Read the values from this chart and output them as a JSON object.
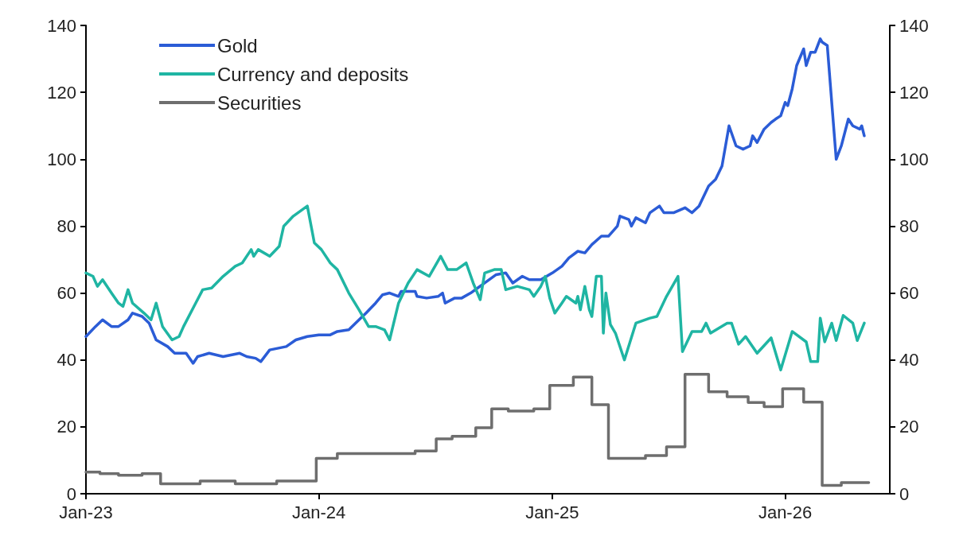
{
  "chart_data": {
    "type": "line",
    "xlim": [
      "2023-01-01",
      "2026-06-14"
    ],
    "xticks": [
      {
        "value": "2023-01-01",
        "label": "Jan-23"
      },
      {
        "value": "2024-01-01",
        "label": "Jan-24"
      },
      {
        "value": "2025-01-01",
        "label": "Jan-25"
      },
      {
        "value": "2026-01-01",
        "label": "Jan-26"
      }
    ],
    "ylim": [
      0,
      140
    ],
    "yticks": [
      0,
      20,
      40,
      60,
      80,
      100,
      120,
      140
    ],
    "y2lim": [
      0,
      140
    ],
    "y2ticks": [
      0,
      20,
      40,
      60,
      80,
      100,
      120,
      140
    ],
    "grid": false,
    "legend": "top left",
    "marker": "none",
    "line_style": "solid",
    "series": [
      {
        "name": "Gold",
        "color": "#2b5cd6",
        "x": [
          "2023-01-01",
          "2023-01-16",
          "2023-01-27",
          "2023-02-10",
          "2023-02-21",
          "2023-03-08",
          "2023-03-15",
          "2023-03-30",
          "2023-04-10",
          "2023-04-21",
          "2023-05-09",
          "2023-05-20",
          "2023-06-07",
          "2023-06-18",
          "2023-06-25",
          "2023-07-13",
          "2023-08-04",
          "2023-08-30",
          "2023-09-10",
          "2023-09-24",
          "2023-10-02",
          "2023-10-16",
          "2023-11-11",
          "2023-11-26",
          "2023-12-14",
          "2024-01-01",
          "2024-01-19",
          "2024-01-30",
          "2024-02-17",
          "2024-03-04",
          "2024-03-15",
          "2024-03-30",
          "2024-04-10",
          "2024-04-21",
          "2024-05-05",
          "2024-05-09",
          "2024-05-31",
          "2024-06-03",
          "2024-06-18",
          "2024-07-06",
          "2024-07-13",
          "2024-07-17",
          "2024-08-01",
          "2024-08-12",
          "2024-08-26",
          "2024-09-06",
          "2024-09-17",
          "2024-10-05",
          "2024-10-20",
          "2024-10-31",
          "2024-11-15",
          "2024-11-26",
          "2024-12-14",
          "2025-01-01",
          "2025-01-16",
          "2025-01-27",
          "2025-02-10",
          "2025-02-21",
          "2025-03-04",
          "2025-03-19",
          "2025-03-30",
          "2025-04-13",
          "2025-04-17",
          "2025-05-01",
          "2025-05-05",
          "2025-05-12",
          "2025-05-27",
          "2025-06-03",
          "2025-06-18",
          "2025-06-25",
          "2025-07-10",
          "2025-07-28",
          "2025-08-08",
          "2025-08-19",
          "2025-09-03",
          "2025-09-14",
          "2025-09-24",
          "2025-10-05",
          "2025-10-16",
          "2025-10-27",
          "2025-11-07",
          "2025-11-11",
          "2025-11-18",
          "2025-11-29",
          "2025-12-10",
          "2025-12-17",
          "2025-12-25",
          "2026-01-01",
          "2026-01-05",
          "2026-01-12",
          "2026-01-19",
          "2026-01-30",
          "2026-02-03",
          "2026-02-10",
          "2026-02-17",
          "2026-02-25",
          "2026-02-28",
          "2026-03-08",
          "2026-03-22",
          "2026-03-30",
          "2026-04-10",
          "2026-04-17",
          "2026-04-28",
          "2026-05-01",
          "2026-05-05"
        ],
        "values": [
          47,
          50,
          52,
          50,
          50,
          52,
          54,
          53,
          51,
          46,
          44,
          42,
          42,
          39,
          41,
          42,
          41,
          42,
          41,
          40.5,
          39.5,
          43,
          44,
          46,
          47,
          47.5,
          47.5,
          48.5,
          49,
          52,
          54,
          57,
          59.5,
          60,
          59,
          60.5,
          60.5,
          59,
          58.5,
          59,
          60,
          57,
          58.5,
          58.5,
          60,
          61.5,
          63,
          65.5,
          66,
          63,
          65,
          64,
          64,
          66,
          68,
          70.5,
          72.5,
          72,
          74.5,
          77,
          77,
          80,
          83,
          82,
          80,
          82.5,
          81,
          84,
          86,
          84,
          84,
          85.5,
          84,
          86,
          92,
          94,
          98,
          110,
          104,
          103,
          104,
          107,
          105,
          109,
          111,
          112,
          113,
          117,
          116,
          121,
          128,
          133,
          128,
          132,
          132,
          136,
          135,
          134,
          100,
          104,
          112,
          110,
          109,
          110,
          107
        ]
      },
      {
        "name": "Currency and deposits",
        "color": "#1fb5a3",
        "x": [
          "2023-01-01",
          "2023-01-12",
          "2023-01-19",
          "2023-01-27",
          "2023-02-10",
          "2023-02-21",
          "2023-02-28",
          "2023-03-08",
          "2023-03-15",
          "2023-04-02",
          "2023-04-13",
          "2023-04-21",
          "2023-05-01",
          "2023-05-16",
          "2023-05-27",
          "2023-06-03",
          "2023-06-22",
          "2023-07-03",
          "2023-07-17",
          "2023-08-04",
          "2023-08-23",
          "2023-09-03",
          "2023-09-17",
          "2023-09-21",
          "2023-09-28",
          "2023-10-16",
          "2023-10-31",
          "2023-11-07",
          "2023-11-22",
          "2023-12-14",
          "2023-12-25",
          "2024-01-05",
          "2024-01-19",
          "2024-01-30",
          "2024-02-17",
          "2024-03-04",
          "2024-03-19",
          "2024-03-30",
          "2024-04-13",
          "2024-04-21",
          "2024-05-05",
          "2024-05-20",
          "2024-06-03",
          "2024-06-22",
          "2024-07-10",
          "2024-07-21",
          "2024-08-04",
          "2024-08-19",
          "2024-08-30",
          "2024-09-10",
          "2024-09-17",
          "2024-10-02",
          "2024-10-13",
          "2024-10-20",
          "2024-11-07",
          "2024-11-26",
          "2024-12-03",
          "2024-12-14",
          "2024-12-21",
          "2024-12-28",
          "2025-01-05",
          "2025-01-16",
          "2025-01-23",
          "2025-02-07",
          "2025-02-10",
          "2025-02-14",
          "2025-02-21",
          "2025-02-28",
          "2025-03-04",
          "2025-03-11",
          "2025-03-19",
          "2025-03-22",
          "2025-03-26",
          "2025-04-02",
          "2025-04-10",
          "2025-04-24",
          "2025-05-12",
          "2025-06-03",
          "2025-06-14",
          "2025-06-29",
          "2025-07-17",
          "2025-07-24",
          "2025-08-08",
          "2025-08-23",
          "2025-08-30",
          "2025-09-06",
          "2025-10-02",
          "2025-10-09",
          "2025-10-20",
          "2025-10-31",
          "2025-11-18",
          "2025-12-10",
          "2025-12-25",
          "2026-01-12",
          "2026-02-03",
          "2026-02-10",
          "2026-02-21",
          "2026-02-25",
          "2026-03-04",
          "2026-03-15",
          "2026-03-22",
          "2026-04-02",
          "2026-04-17",
          "2026-04-24",
          "2026-05-05"
        ],
        "values": [
          66,
          65,
          62,
          64,
          60,
          57,
          56,
          61,
          57,
          54,
          52,
          57,
          50,
          46,
          47,
          50,
          57,
          61,
          61.5,
          65,
          68,
          69,
          73,
          71,
          73,
          71,
          74,
          80,
          83,
          86,
          75,
          73,
          69,
          67,
          60,
          55,
          50,
          50,
          49,
          46,
          57,
          63,
          67,
          65,
          71,
          67,
          67,
          69,
          63,
          58,
          66,
          67,
          67,
          61,
          62,
          61,
          59,
          62,
          65,
          58.5,
          54,
          57,
          59,
          57,
          59,
          55,
          62,
          55,
          53,
          65,
          65,
          48,
          60,
          50.6,
          48,
          40,
          51,
          52.5,
          53,
          59,
          65,
          42.5,
          48.5,
          48.5,
          51,
          48,
          51,
          51,
          44.7,
          47,
          42,
          46.6,
          37,
          48.5,
          45.4,
          39.5,
          39.5,
          52.5,
          45.4,
          51,
          45.8,
          53.3,
          51,
          45.8,
          51
        ]
      },
      {
        "name": "Securities",
        "type": "step",
        "color": "#6e6e6e",
        "x": [
          "2023-01-01",
          "2023-01-23",
          "2023-02-21",
          "2023-03-30",
          "2023-04-24",
          "2023-04-28",
          "2023-06-29",
          "2023-08-23",
          "2023-10-27",
          "2023-12-25",
          "2023-12-28",
          "2024-01-19",
          "2024-01-30",
          "2024-05-27",
          "2024-05-31",
          "2024-06-29",
          "2024-07-03",
          "2024-07-28",
          "2024-08-26",
          "2024-09-03",
          "2024-09-24",
          "2024-09-28",
          "2024-10-24",
          "2024-11-29",
          "2024-12-03",
          "2024-12-25",
          "2024-12-28",
          "2025-01-30",
          "2025-02-03",
          "2025-02-21",
          "2025-03-04",
          "2025-03-22",
          "2025-03-30",
          "2025-05-27",
          "2025-06-25",
          "2025-06-29",
          "2025-07-24",
          "2025-07-28",
          "2025-08-26",
          "2025-09-03",
          "2025-09-24",
          "2025-10-02",
          "2025-10-27",
          "2025-11-04",
          "2025-11-26",
          "2025-11-29",
          "2025-12-25",
          "2025-12-28",
          "2026-01-27",
          "2026-01-30",
          "2026-02-25",
          "2026-02-28",
          "2026-03-22",
          "2026-03-30",
          "2026-05-12"
        ],
        "values": [
          6.5,
          6,
          5.5,
          6,
          6,
          3,
          3.8,
          3,
          3.8,
          3.8,
          10.6,
          10.6,
          12,
          12,
          12.8,
          12.8,
          16.4,
          17.2,
          17.2,
          19.7,
          19.7,
          25.4,
          24.7,
          24.7,
          25.4,
          25.4,
          32.4,
          32.4,
          34.9,
          34.9,
          26.6,
          26.6,
          10.6,
          11.4,
          11.4,
          14,
          14,
          35.7,
          35.7,
          30.5,
          30.5,
          29,
          29,
          27.3,
          27.3,
          26,
          26,
          31.4,
          31.4,
          27.4,
          27.4,
          2.5,
          2.5,
          3.3,
          3.3
        ]
      }
    ]
  }
}
